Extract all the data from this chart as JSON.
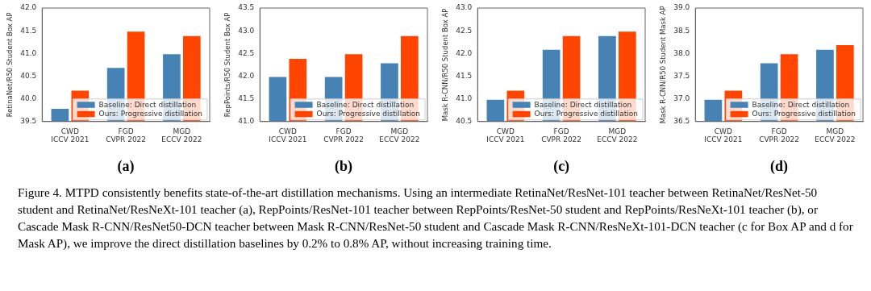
{
  "chart_data": [
    {
      "type": "bar",
      "xlabel": "(a)",
      "ylabel": "RetinaNet/R50 Student Box AP",
      "categories": [
        "CWD\nICCV 2021",
        "FGD\nCVPR 2022",
        "MGD\nECCV 2022"
      ],
      "legend": "bottom right",
      "ylim": [
        39.5,
        42.0
      ],
      "yticks": [
        {
          "value": 39.5,
          "label": "39.5"
        },
        {
          "value": 40,
          "label": "40.0"
        },
        {
          "value": 40.5,
          "label": "40.5"
        },
        {
          "value": 41,
          "label": "41.0"
        },
        {
          "value": 41.5,
          "label": "41.5"
        },
        {
          "value": 42,
          "label": "42.0"
        }
      ],
      "series": [
        {
          "name": "Baseline: Direct distillation",
          "color": "#4682b4",
          "values": [
            39.8,
            40.7,
            41.0
          ]
        },
        {
          "name": "Ours: Progressive distillation",
          "color": "#ff4500",
          "values": [
            40.2,
            41.5,
            41.4
          ]
        }
      ]
    },
    {
      "type": "bar",
      "xlabel": "(b)",
      "ylabel": "RepPoints/R50 Student Box AP",
      "categories": [
        "CWD\nICCV 2021",
        "FGD\nCVPR 2022",
        "MGD\nECCV 2022"
      ],
      "legend": "bottom right",
      "ylim": [
        41.0,
        43.5
      ],
      "yticks": [
        {
          "value": 41,
          "label": "41.0"
        },
        {
          "value": 41.5,
          "label": "41.5"
        },
        {
          "value": 42,
          "label": "42.0"
        },
        {
          "value": 42.5,
          "label": "42.5"
        },
        {
          "value": 43,
          "label": "43.0"
        },
        {
          "value": 43.5,
          "label": "43.5"
        }
      ],
      "series": [
        {
          "name": "Baseline: Direct distillation",
          "color": "#4682b4",
          "values": [
            42.0,
            42.0,
            42.3
          ]
        },
        {
          "name": "Ours: Progressive distillation",
          "color": "#ff4500",
          "values": [
            42.4,
            42.5,
            42.9
          ]
        }
      ]
    },
    {
      "type": "bar",
      "xlabel": "(c)",
      "ylabel": "Mask R-CNN/R50 Student Box AP",
      "categories": [
        "CWD\nICCV 2021",
        "FGD\nCVPR 2022",
        "MGD\nECCV 2022"
      ],
      "legend": "bottom right",
      "ylim": [
        40.5,
        43.0
      ],
      "yticks": [
        {
          "value": 40.5,
          "label": "40.5"
        },
        {
          "value": 41,
          "label": "41.0"
        },
        {
          "value": 41.5,
          "label": "41.5"
        },
        {
          "value": 42,
          "label": "42.0"
        },
        {
          "value": 42.5,
          "label": "42.5"
        },
        {
          "value": 43,
          "label": "43.0"
        }
      ],
      "series": [
        {
          "name": "Baseline: Direct distillation",
          "color": "#4682b4",
          "values": [
            41.0,
            42.1,
            42.4
          ]
        },
        {
          "name": "Ours: Progressive distillation",
          "color": "#ff4500",
          "values": [
            41.2,
            42.4,
            42.5
          ]
        }
      ]
    },
    {
      "type": "bar",
      "xlabel": "(d)",
      "ylabel": "Mask R-CNN/R50 Student Mask AP",
      "categories": [
        "CWD\nICCV 2021",
        "FGD\nCVPR 2022",
        "MGD\nECCV 2022"
      ],
      "legend": "bottom right",
      "ylim": [
        36.5,
        39.0
      ],
      "yticks": [
        {
          "value": 36.5,
          "label": "36.5"
        },
        {
          "value": 37,
          "label": "37.0"
        },
        {
          "value": 37.5,
          "label": "37.5"
        },
        {
          "value": 38,
          "label": "38.0"
        },
        {
          "value": 38.5,
          "label": "38.5"
        },
        {
          "value": 39,
          "label": "39.0"
        }
      ],
      "series": [
        {
          "name": "Baseline: Direct distillation",
          "color": "#4682b4",
          "values": [
            37.0,
            37.8,
            38.1
          ]
        },
        {
          "name": "Ours: Progressive distillation",
          "color": "#ff4500",
          "values": [
            37.2,
            38.0,
            38.2
          ]
        }
      ]
    },
    {
      "type": "other",
      "annotations": [
        "Figure 4. MTPD consistently benefits state-of-the-art distillation mechanisms. Using an intermediate RetinaNet/ResNet-101 teacher between RetinaNet/ResNet-50 student and RetinaNet/ResNeXt-101 teacher (a), RepPoints/ResNet-101 teacher between RepPoints/ResNet-50 student and RepPoints/ResNeXt-101 teacher (b), or Cascade Mask R-CNN/ResNet50-DCN teacher between Mask R-CNN/ResNet-50 student and Cascade Mask R-CNN/ResNeXt-101-DCN teacher (c for Box AP and d for Mask AP), we improve the direct distillation baselines by 0.2% to 0.8% AP, without increasing training time."
      ]
    }
  ]
}
